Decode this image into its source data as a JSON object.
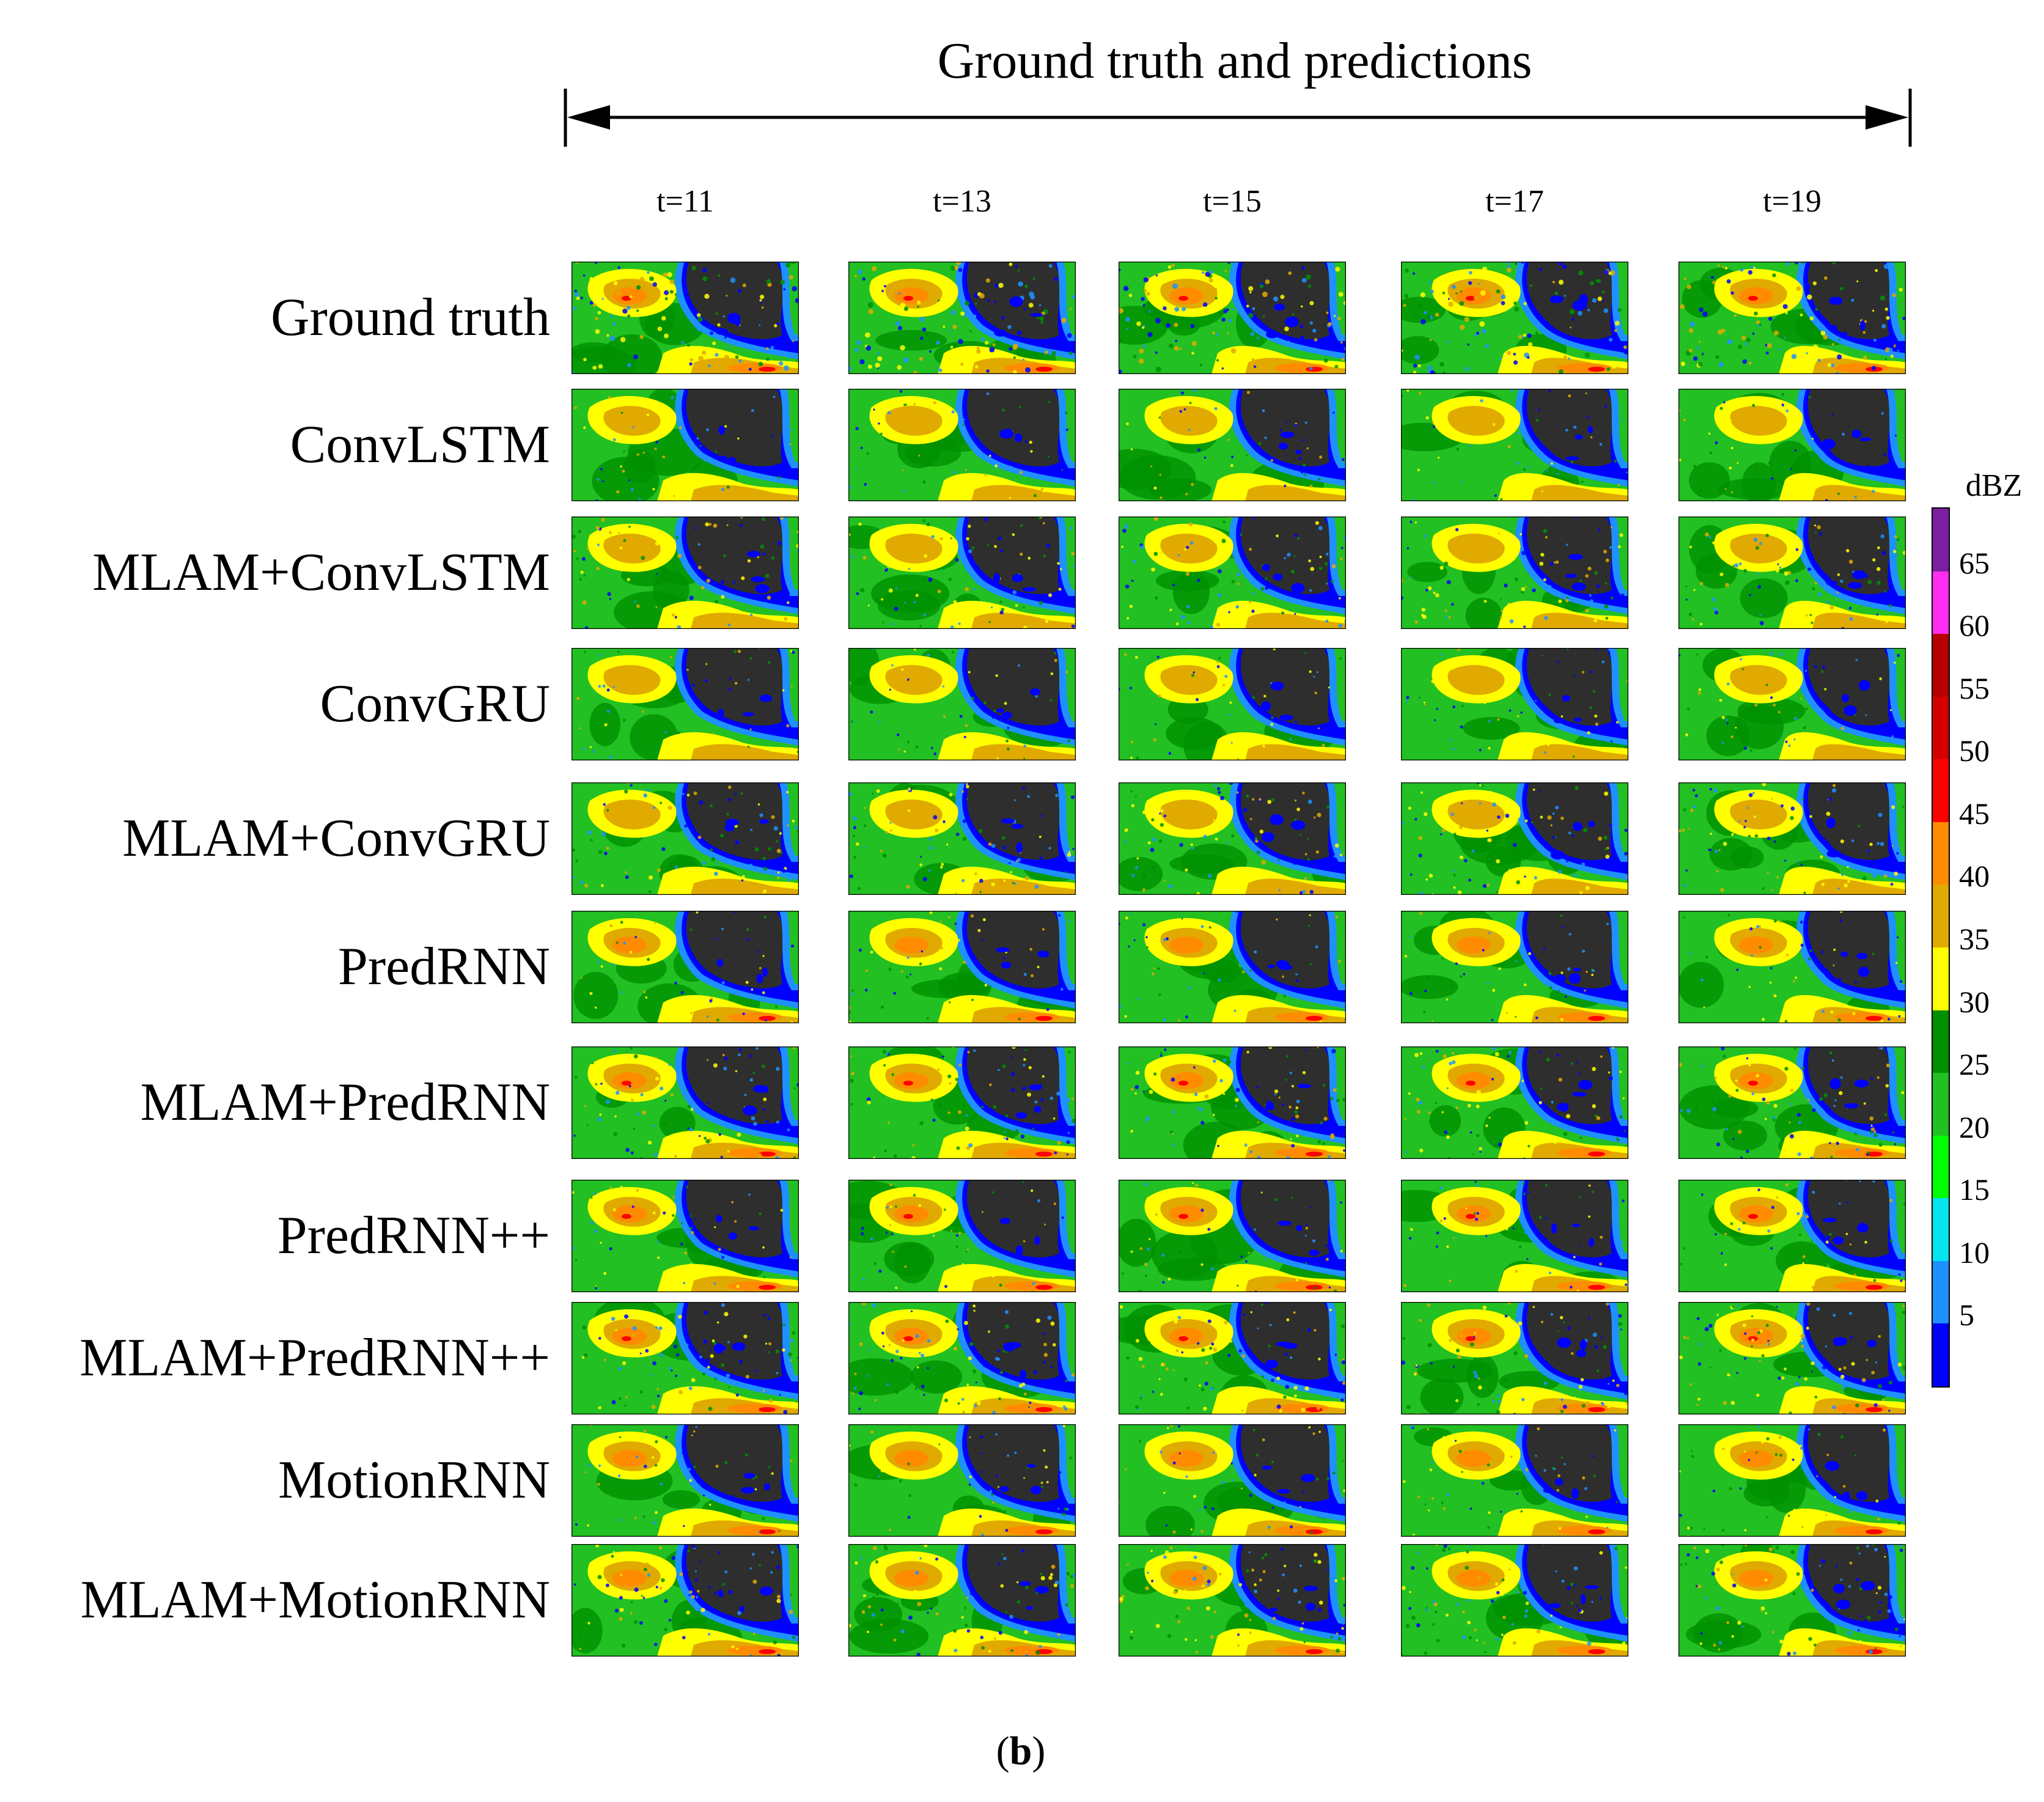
{
  "header": {
    "title": "Ground truth and predictions"
  },
  "columns": [
    "t=11",
    "t=13",
    "t=15",
    "t=17",
    "t=19"
  ],
  "rows": [
    "Ground truth",
    "ConvLSTM",
    "MLAM+ConvLSTM",
    "ConvGRU",
    "MLAM+ConvGRU",
    "PredRNN",
    "MLAM+PredRNN",
    "PredRNN++",
    "MLAM+PredRNN++",
    "MotionRNN",
    "MLAM+MotionRNN"
  ],
  "colorbar": {
    "unit": "dBZ",
    "tick_labels": [
      "65",
      "60",
      "55",
      "50",
      "45",
      "40",
      "35",
      "30",
      "25",
      "20",
      "15",
      "10",
      "5"
    ],
    "colors": [
      "#7b1fa2",
      "#ff2df0",
      "#b80000",
      "#d40000",
      "#ff0000",
      "#ff8c00",
      "#e0aa00",
      "#ffff00",
      "#009000",
      "#22c022",
      "#00ff00",
      "#00e5ee",
      "#1e90ff",
      "#0000ff"
    ]
  },
  "panel_colors": {
    "background": "#2e2e2e",
    "blue": "#0000ff",
    "cyan": "#1e90ff",
    "light_green": "#22c022",
    "dark_green": "#009000",
    "yellow": "#ffff00",
    "gold": "#e0aa00",
    "orange": "#ff8c00",
    "red": "#ff0000"
  },
  "caption": {
    "open": "(",
    "letter": "b",
    "close": ")"
  }
}
